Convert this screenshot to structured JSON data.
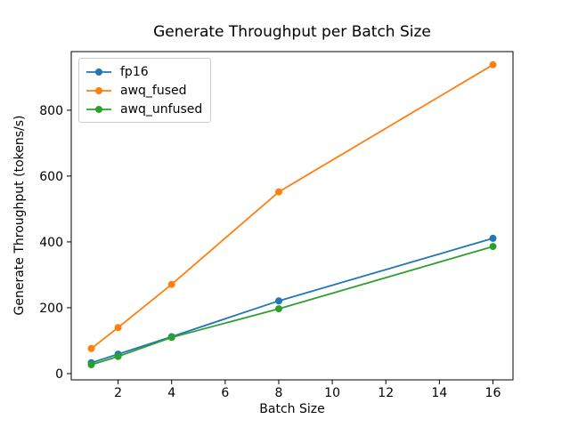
{
  "chart_data": {
    "type": "line",
    "title": "Generate Throughput per Batch Size",
    "xlabel": "Batch Size",
    "ylabel": "Generate Throughput (tokens/s)",
    "x": [
      1,
      2,
      4,
      8,
      16
    ],
    "series": [
      {
        "name": "fp16",
        "color": "#1f77b4",
        "values": [
          33,
          59,
          112,
          221,
          411
        ]
      },
      {
        "name": "awq_fused",
        "color": "#ff7f0e",
        "values": [
          76,
          140,
          271,
          552,
          938
        ]
      },
      {
        "name": "awq_unfused",
        "color": "#2ca02c",
        "values": [
          27,
          52,
          110,
          197,
          386
        ]
      }
    ],
    "xlim": [
      0.25,
      16.75
    ],
    "ylim": [
      -19,
      978
    ],
    "xticks": [
      2,
      4,
      6,
      8,
      10,
      12,
      14,
      16
    ],
    "yticks": [
      0,
      200,
      400,
      600,
      800
    ],
    "grid": false,
    "legend_position": "upper left",
    "marker": "o",
    "background": "#ffffff",
    "spine_color": "#000000"
  }
}
